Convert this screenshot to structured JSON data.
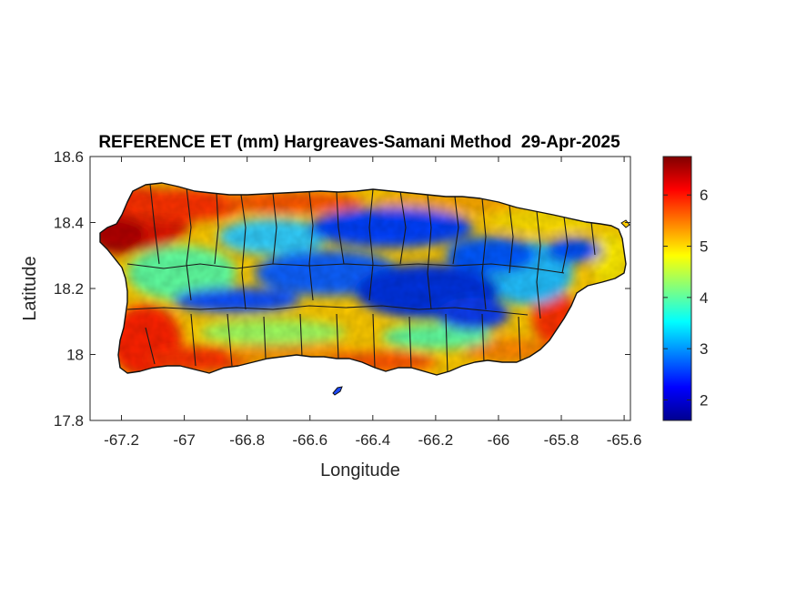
{
  "chart_data": {
    "type": "heatmap",
    "title": "REFERENCE ET (mm) Hargreaves-Samani Method  29-Apr-2025",
    "xlabel": "Longitude",
    "ylabel": "Latitude",
    "xlim": [
      -67.3,
      -65.58
    ],
    "ylim": [
      17.8,
      18.6
    ],
    "x_ticks": [
      "-67.2",
      "-67",
      "-66.8",
      "-66.6",
      "-66.4",
      "-66.2",
      "-66",
      "-65.8",
      "-65.6"
    ],
    "x_tick_values": [
      -67.2,
      -67.0,
      -66.8,
      -66.6,
      -66.4,
      -66.2,
      -66.0,
      -65.8,
      -65.6
    ],
    "y_ticks": [
      "18.6",
      "18.4",
      "18.2",
      "18",
      "17.8"
    ],
    "y_tick_values": [
      18.6,
      18.4,
      18.2,
      18.0,
      17.8
    ],
    "colorbar": {
      "colormap": "jet",
      "range": [
        1.6,
        6.75
      ],
      "ticks": [
        "6",
        "5",
        "4",
        "3",
        "2"
      ],
      "tick_values": [
        6,
        5,
        4,
        3,
        2
      ]
    },
    "grid": false,
    "region": "Puerto Rico",
    "field_summary": {
      "coast_high": 6.3,
      "interior_low": 2.0,
      "northwest_high": 6.6,
      "south_coast_high": 6.2
    }
  }
}
